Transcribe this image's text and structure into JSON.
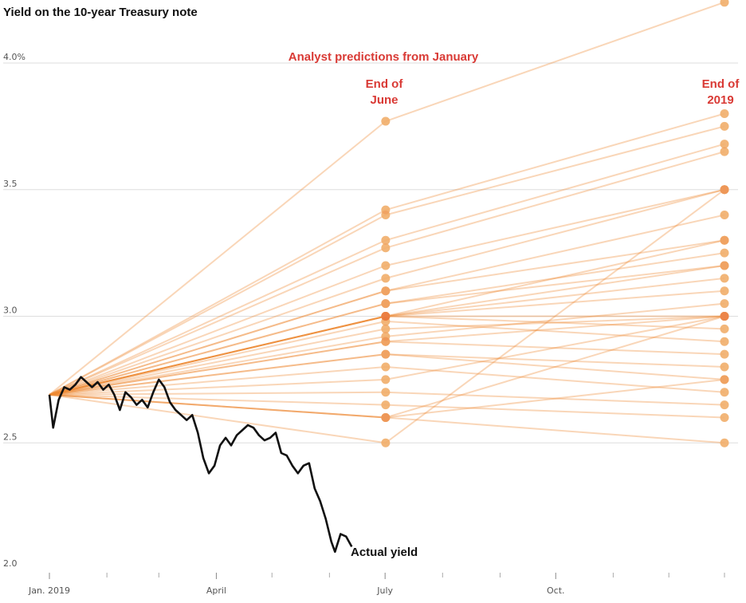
{
  "chart_data": {
    "type": "line",
    "title": "Yield on the 10-year Treasury note",
    "y_unit": "%",
    "ylim": [
      2.0,
      4.2
    ],
    "y_ticks": [
      2.0,
      2.5,
      3.0,
      3.5,
      4.0
    ],
    "y_tick_labels": [
      "2.0",
      "2.5",
      "3.0",
      "3.5",
      "4.0%"
    ],
    "x_ticks": [
      {
        "date": "2019-01-01",
        "label": "Jan. 2019"
      },
      {
        "date": "2019-04-01",
        "label": "April"
      },
      {
        "date": "2019-07-01",
        "label": "July"
      },
      {
        "date": "2019-10-01",
        "label": "Oct."
      }
    ],
    "x_minor_tick_dates": [
      "2019-02-01",
      "2019-03-01",
      "2019-05-01",
      "2019-06-01",
      "2019-08-01",
      "2019-09-01",
      "2019-11-01",
      "2019-12-01",
      "2019-12-31"
    ],
    "grid": true,
    "annotations": {
      "predictions_heading": "Analyst predictions from January",
      "end_of_june": [
        "End of",
        "June"
      ],
      "end_of_2019": [
        "End of",
        "2019"
      ],
      "actual_label": "Actual yield"
    },
    "colors": {
      "actual": "#111111",
      "prediction_light": "#f4c27d",
      "prediction_dark": "#d62a0e",
      "heading_red": "#d93a35"
    },
    "prediction_start": {
      "date": "2019-01-01",
      "yield": 2.69
    },
    "prediction_dates": [
      "2019-06-30",
      "2019-12-31"
    ],
    "predictions": [
      [
        3.77,
        4.24
      ],
      [
        3.42,
        3.8
      ],
      [
        3.4,
        3.75
      ],
      [
        3.3,
        3.68
      ],
      [
        3.27,
        3.65
      ],
      [
        3.2,
        3.5
      ],
      [
        3.15,
        3.5
      ],
      [
        3.1,
        3.4
      ],
      [
        3.1,
        3.3
      ],
      [
        3.05,
        3.25
      ],
      [
        3.05,
        3.2
      ],
      [
        3.0,
        3.3
      ],
      [
        3.0,
        3.2
      ],
      [
        3.0,
        3.15
      ],
      [
        3.0,
        3.1
      ],
      [
        3.0,
        3.0
      ],
      [
        3.0,
        2.95
      ],
      [
        2.98,
        2.9
      ],
      [
        2.95,
        3.0
      ],
      [
        2.92,
        3.05
      ],
      [
        2.9,
        3.0
      ],
      [
        2.9,
        2.85
      ],
      [
        2.85,
        2.8
      ],
      [
        2.85,
        2.75
      ],
      [
        2.8,
        2.7
      ],
      [
        2.75,
        3.0
      ],
      [
        2.7,
        2.65
      ],
      [
        2.65,
        2.6
      ],
      [
        2.6,
        2.5
      ],
      [
        2.6,
        2.75
      ],
      [
        2.6,
        3.0
      ],
      [
        2.5,
        3.5
      ]
    ],
    "actual_yield": [
      [
        "2019-01-01",
        2.69
      ],
      [
        "2019-01-03",
        2.56
      ],
      [
        "2019-01-06",
        2.67
      ],
      [
        "2019-01-09",
        2.72
      ],
      [
        "2019-01-12",
        2.71
      ],
      [
        "2019-01-15",
        2.73
      ],
      [
        "2019-01-18",
        2.76
      ],
      [
        "2019-01-21",
        2.74
      ],
      [
        "2019-01-24",
        2.72
      ],
      [
        "2019-01-27",
        2.74
      ],
      [
        "2019-01-30",
        2.71
      ],
      [
        "2019-02-02",
        2.73
      ],
      [
        "2019-02-05",
        2.69
      ],
      [
        "2019-02-08",
        2.63
      ],
      [
        "2019-02-11",
        2.7
      ],
      [
        "2019-02-14",
        2.68
      ],
      [
        "2019-02-17",
        2.65
      ],
      [
        "2019-02-20",
        2.67
      ],
      [
        "2019-02-23",
        2.64
      ],
      [
        "2019-02-26",
        2.7
      ],
      [
        "2019-03-01",
        2.75
      ],
      [
        "2019-03-04",
        2.72
      ],
      [
        "2019-03-07",
        2.66
      ],
      [
        "2019-03-10",
        2.63
      ],
      [
        "2019-03-13",
        2.61
      ],
      [
        "2019-03-16",
        2.59
      ],
      [
        "2019-03-19",
        2.61
      ],
      [
        "2019-03-22",
        2.54
      ],
      [
        "2019-03-25",
        2.44
      ],
      [
        "2019-03-28",
        2.38
      ],
      [
        "2019-03-31",
        2.41
      ],
      [
        "2019-04-03",
        2.49
      ],
      [
        "2019-04-06",
        2.52
      ],
      [
        "2019-04-09",
        2.49
      ],
      [
        "2019-04-12",
        2.53
      ],
      [
        "2019-04-15",
        2.55
      ],
      [
        "2019-04-18",
        2.57
      ],
      [
        "2019-04-21",
        2.56
      ],
      [
        "2019-04-24",
        2.53
      ],
      [
        "2019-04-27",
        2.51
      ],
      [
        "2019-04-30",
        2.52
      ],
      [
        "2019-05-03",
        2.54
      ],
      [
        "2019-05-06",
        2.46
      ],
      [
        "2019-05-09",
        2.45
      ],
      [
        "2019-05-12",
        2.41
      ],
      [
        "2019-05-15",
        2.38
      ],
      [
        "2019-05-18",
        2.41
      ],
      [
        "2019-05-21",
        2.42
      ],
      [
        "2019-05-24",
        2.32
      ],
      [
        "2019-05-27",
        2.27
      ],
      [
        "2019-05-30",
        2.2
      ],
      [
        "2019-06-02",
        2.11
      ],
      [
        "2019-06-04",
        2.07
      ],
      [
        "2019-06-07",
        2.14
      ],
      [
        "2019-06-10",
        2.13
      ],
      [
        "2019-06-13",
        2.09
      ]
    ]
  }
}
